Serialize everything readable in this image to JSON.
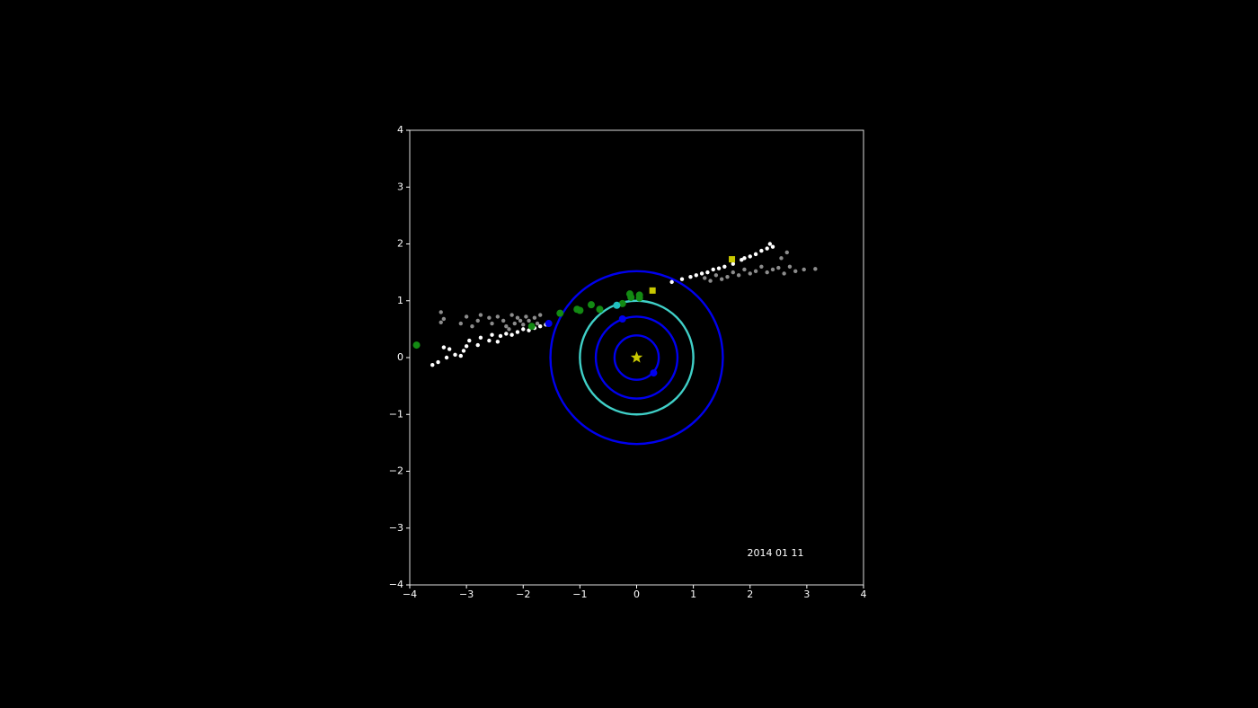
{
  "chart_data": {
    "type": "scatter",
    "xlim": [
      -4,
      4
    ],
    "ylim": [
      -4,
      4
    ],
    "xticks": [
      {
        "value": -4,
        "label": "−4"
      },
      {
        "value": -3,
        "label": "−3"
      },
      {
        "value": -2,
        "label": "−2"
      },
      {
        "value": -1,
        "label": "−1"
      },
      0,
      1,
      2,
      3,
      4
    ],
    "yticks": [
      {
        "value": -4,
        "label": "−4"
      },
      {
        "value": -3,
        "label": "−3"
      },
      {
        "value": -2,
        "label": "−2"
      },
      {
        "value": -1,
        "label": "−1"
      },
      0,
      1,
      2,
      3,
      4
    ],
    "annotation": "2014 01 11",
    "orbits": [
      {
        "radius": 0.39,
        "color": "#0000ee"
      },
      {
        "radius": 0.72,
        "color": "#0000ee"
      },
      {
        "radius": 1.0,
        "color": "#40d0c8"
      },
      {
        "radius": 1.52,
        "color": "#0000ee"
      }
    ],
    "series": [
      {
        "color": "#8c8c8c",
        "marker": ".",
        "x": [
          -3.45,
          -3.4,
          -3.45,
          -3.1,
          -3.0,
          -2.9,
          -2.8,
          -2.75,
          -2.6,
          -2.55,
          -2.45,
          -2.35,
          -2.3,
          -2.25,
          -2.2,
          -2.15,
          -2.1,
          -2.05,
          -2.0,
          -1.95,
          -1.9,
          -1.8,
          -1.75,
          -1.7,
          1.2,
          1.3,
          1.4,
          1.5,
          1.6,
          1.7,
          1.8,
          1.9,
          2.0,
          2.1,
          2.2,
          2.3,
          2.4,
          2.5,
          2.55,
          2.6,
          2.65,
          2.7,
          2.8,
          2.95,
          3.15
        ],
        "y": [
          0.8,
          0.68,
          0.62,
          0.6,
          0.72,
          0.55,
          0.65,
          0.75,
          0.7,
          0.6,
          0.72,
          0.65,
          0.55,
          0.5,
          0.75,
          0.6,
          0.7,
          0.65,
          0.58,
          0.72,
          0.65,
          0.7,
          0.6,
          0.75,
          1.4,
          1.35,
          1.45,
          1.38,
          1.42,
          1.5,
          1.45,
          1.55,
          1.48,
          1.52,
          1.6,
          1.5,
          1.55,
          1.58,
          1.75,
          1.48,
          1.85,
          1.6,
          1.52,
          1.55,
          1.56
        ]
      },
      {
        "color": "#ffffff",
        "marker": ".",
        "x": [
          -3.6,
          -3.5,
          -3.4,
          -3.35,
          -3.3,
          -3.2,
          -3.1,
          -3.05,
          -3.0,
          -2.95,
          -2.8,
          -2.75,
          -2.6,
          -2.55,
          -2.45,
          -2.4,
          -2.3,
          -2.2,
          -2.1,
          -2.0,
          -1.9,
          -1.8,
          -1.7,
          -1.6,
          0.62,
          0.8,
          0.95,
          1.05,
          1.15,
          1.25,
          1.35,
          1.45,
          1.55,
          1.7,
          1.85,
          1.9,
          2.0,
          2.1,
          2.2,
          2.3,
          2.35,
          2.4
        ],
        "y": [
          -0.13,
          -0.08,
          0.18,
          0.0,
          0.15,
          0.05,
          0.03,
          0.12,
          0.2,
          0.3,
          0.22,
          0.35,
          0.3,
          0.4,
          0.28,
          0.38,
          0.42,
          0.4,
          0.45,
          0.5,
          0.48,
          0.52,
          0.55,
          0.58,
          1.33,
          1.38,
          1.42,
          1.45,
          1.48,
          1.5,
          1.55,
          1.57,
          1.6,
          1.65,
          1.72,
          1.75,
          1.78,
          1.82,
          1.88,
          1.92,
          2.0,
          1.95
        ]
      },
      {
        "color": "#138a13",
        "marker": "o",
        "x": [
          -3.88,
          -1.85,
          -1.35,
          -1.05,
          -1.0,
          -0.8,
          -0.65,
          -0.25,
          -0.12,
          -0.1,
          0.05,
          0.05
        ],
        "y": [
          0.22,
          0.55,
          0.78,
          0.85,
          0.83,
          0.93,
          0.85,
          0.95,
          1.12,
          1.06,
          1.1,
          1.05
        ]
      },
      {
        "color": "#c8c800",
        "marker": "s",
        "x": [
          0.28,
          1.68
        ],
        "y": [
          1.18,
          1.73
        ]
      },
      {
        "color": "#0000ee",
        "marker": "o",
        "x": [
          0.3,
          -0.25,
          -1.55
        ],
        "y": [
          -0.27,
          0.68,
          0.6
        ]
      },
      {
        "color": "#20c0c0",
        "marker": "o",
        "x": [
          -0.35
        ],
        "y": [
          0.92
        ]
      },
      {
        "color": "#c8c800",
        "marker": "*",
        "x": [
          0
        ],
        "y": [
          0
        ]
      }
    ]
  }
}
